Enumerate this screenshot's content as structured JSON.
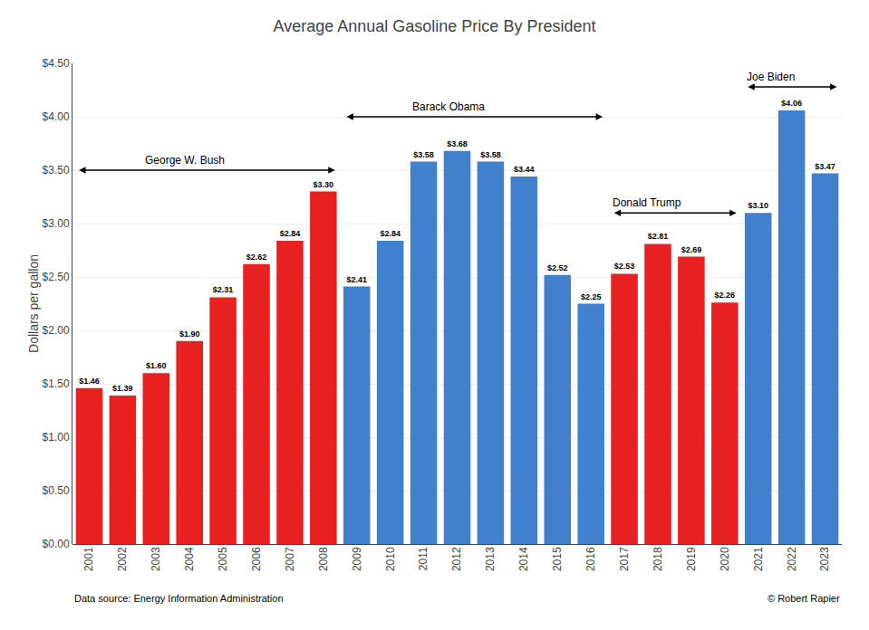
{
  "chart_data": {
    "type": "bar",
    "title": "Average Annual Gasoline Price By President",
    "ylabel": "Dollars per gallon",
    "categories": [
      "2001",
      "2002",
      "2003",
      "2004",
      "2005",
      "2006",
      "2007",
      "2008",
      "2009",
      "2010",
      "2011",
      "2012",
      "2013",
      "2014",
      "2015",
      "2016",
      "2017",
      "2018",
      "2019",
      "2020",
      "2021",
      "2022",
      "2023"
    ],
    "values": [
      1.46,
      1.39,
      1.6,
      1.9,
      2.31,
      2.62,
      2.84,
      3.3,
      2.41,
      2.84,
      3.58,
      3.68,
      3.58,
      3.44,
      2.52,
      2.25,
      2.53,
      2.81,
      2.69,
      2.26,
      3.1,
      4.06,
      3.47
    ],
    "value_labels": [
      "$1.46",
      "$1.39",
      "$1.60",
      "$1.90",
      "$2.31",
      "$2.62",
      "$2.84",
      "$3.30",
      "$2.41",
      "$2.84",
      "$3.58",
      "$3.68",
      "$3.58",
      "$3.44",
      "$2.52",
      "$2.25",
      "$2.53",
      "$2.81",
      "$2.69",
      "$2.26",
      "$3.10",
      "$4.06",
      "$3.47"
    ],
    "data_labels": true,
    "colors": [
      "#e82020",
      "#e82020",
      "#e82020",
      "#e82020",
      "#e82020",
      "#e82020",
      "#e82020",
      "#e82020",
      "#4080cc",
      "#4080cc",
      "#4080cc",
      "#4080cc",
      "#4080cc",
      "#4080cc",
      "#4080cc",
      "#4080cc",
      "#e82020",
      "#e82020",
      "#e82020",
      "#e82020",
      "#4080cc",
      "#4080cc",
      "#4080cc"
    ],
    "ylim": [
      0.0,
      4.5
    ],
    "yticks": [
      {
        "value": 0.0,
        "label": "$0.00"
      },
      {
        "value": 0.5,
        "label": "$0.50"
      },
      {
        "value": 1.0,
        "label": "$1.00"
      },
      {
        "value": 1.5,
        "label": "$1.50"
      },
      {
        "value": 2.0,
        "label": "$2.00"
      },
      {
        "value": 2.5,
        "label": "$2.50"
      },
      {
        "value": 3.0,
        "label": "$3.00"
      },
      {
        "value": 3.5,
        "label": "$3.50"
      },
      {
        "value": 4.0,
        "label": "$4.00"
      },
      {
        "value": 4.5,
        "label": "$4.50"
      }
    ],
    "grid": true,
    "annotations": [
      {
        "text": "George W. Bush",
        "start": "2001",
        "end": "2008",
        "x": "2003",
        "y": 3.5
      },
      {
        "text": "Barack Obama",
        "start": "2009",
        "end": "2016",
        "x": "2011",
        "y": 4.0
      },
      {
        "text": "Donald Trump",
        "start": "2017",
        "end": "2020",
        "x": "2017",
        "y": 3.1
      },
      {
        "text": "Joe Biden",
        "start": "2021",
        "end": "2023",
        "x": "2021",
        "y": 4.28
      }
    ],
    "source": "Data source: Energy Information Administration",
    "credit": "© Robert Rapier"
  }
}
